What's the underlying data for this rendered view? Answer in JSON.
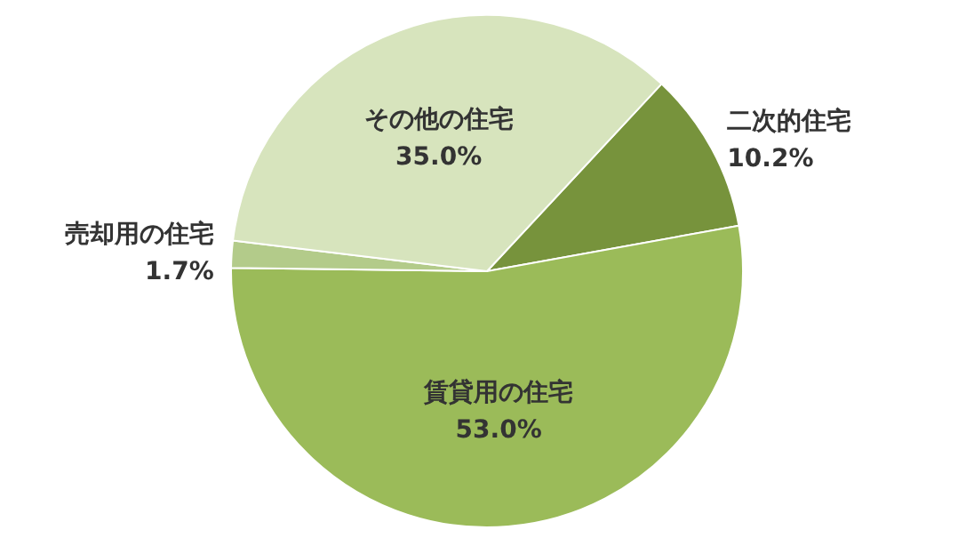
{
  "chart_data": {
    "type": "pie",
    "categories": [
      "二次的住宅",
      "賃貸用の住宅",
      "売却用の住宅",
      "その他の住宅"
    ],
    "values": [
      10.2,
      53.0,
      1.7,
      35.0
    ],
    "value_labels": [
      "10.2%",
      "53.0%",
      "1.7%",
      "35.0%"
    ],
    "colors": [
      "#77933c",
      "#9bbb59",
      "#b3cb8a",
      "#d7e4bd"
    ],
    "legend": false
  }
}
